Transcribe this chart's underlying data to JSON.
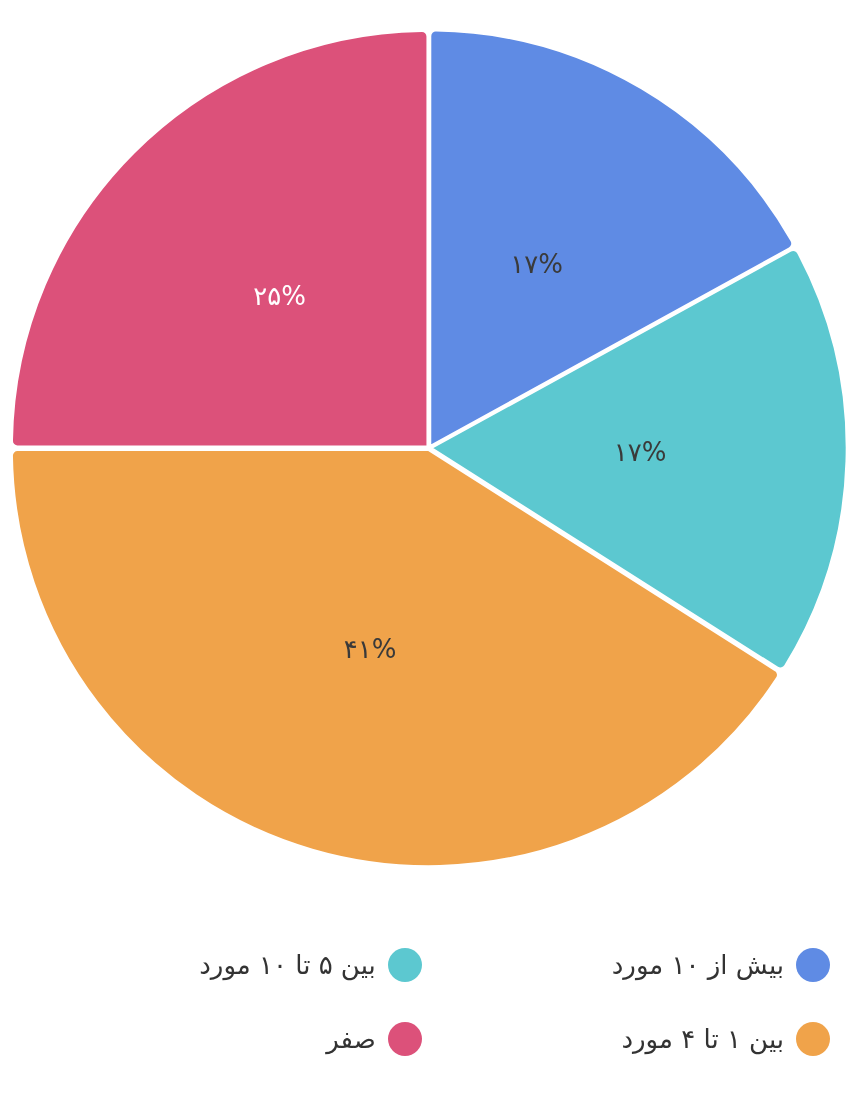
{
  "chart_data": {
    "type": "pie",
    "categories": [
      "بیش از ۱۰ مورد",
      "بین ۵ تا ۱۰ مورد",
      "بین ۱ تا ۴ مورد",
      "صفر"
    ],
    "values": [
      17,
      17,
      41,
      25
    ],
    "colors": [
      "#5f8be4",
      "#5cc8d0",
      "#f0a34a",
      "#dc517a"
    ],
    "value_labels": [
      "۱۷%",
      "۱۷%",
      "۴۱%",
      "۲۵%"
    ],
    "legend": "bottom"
  }
}
